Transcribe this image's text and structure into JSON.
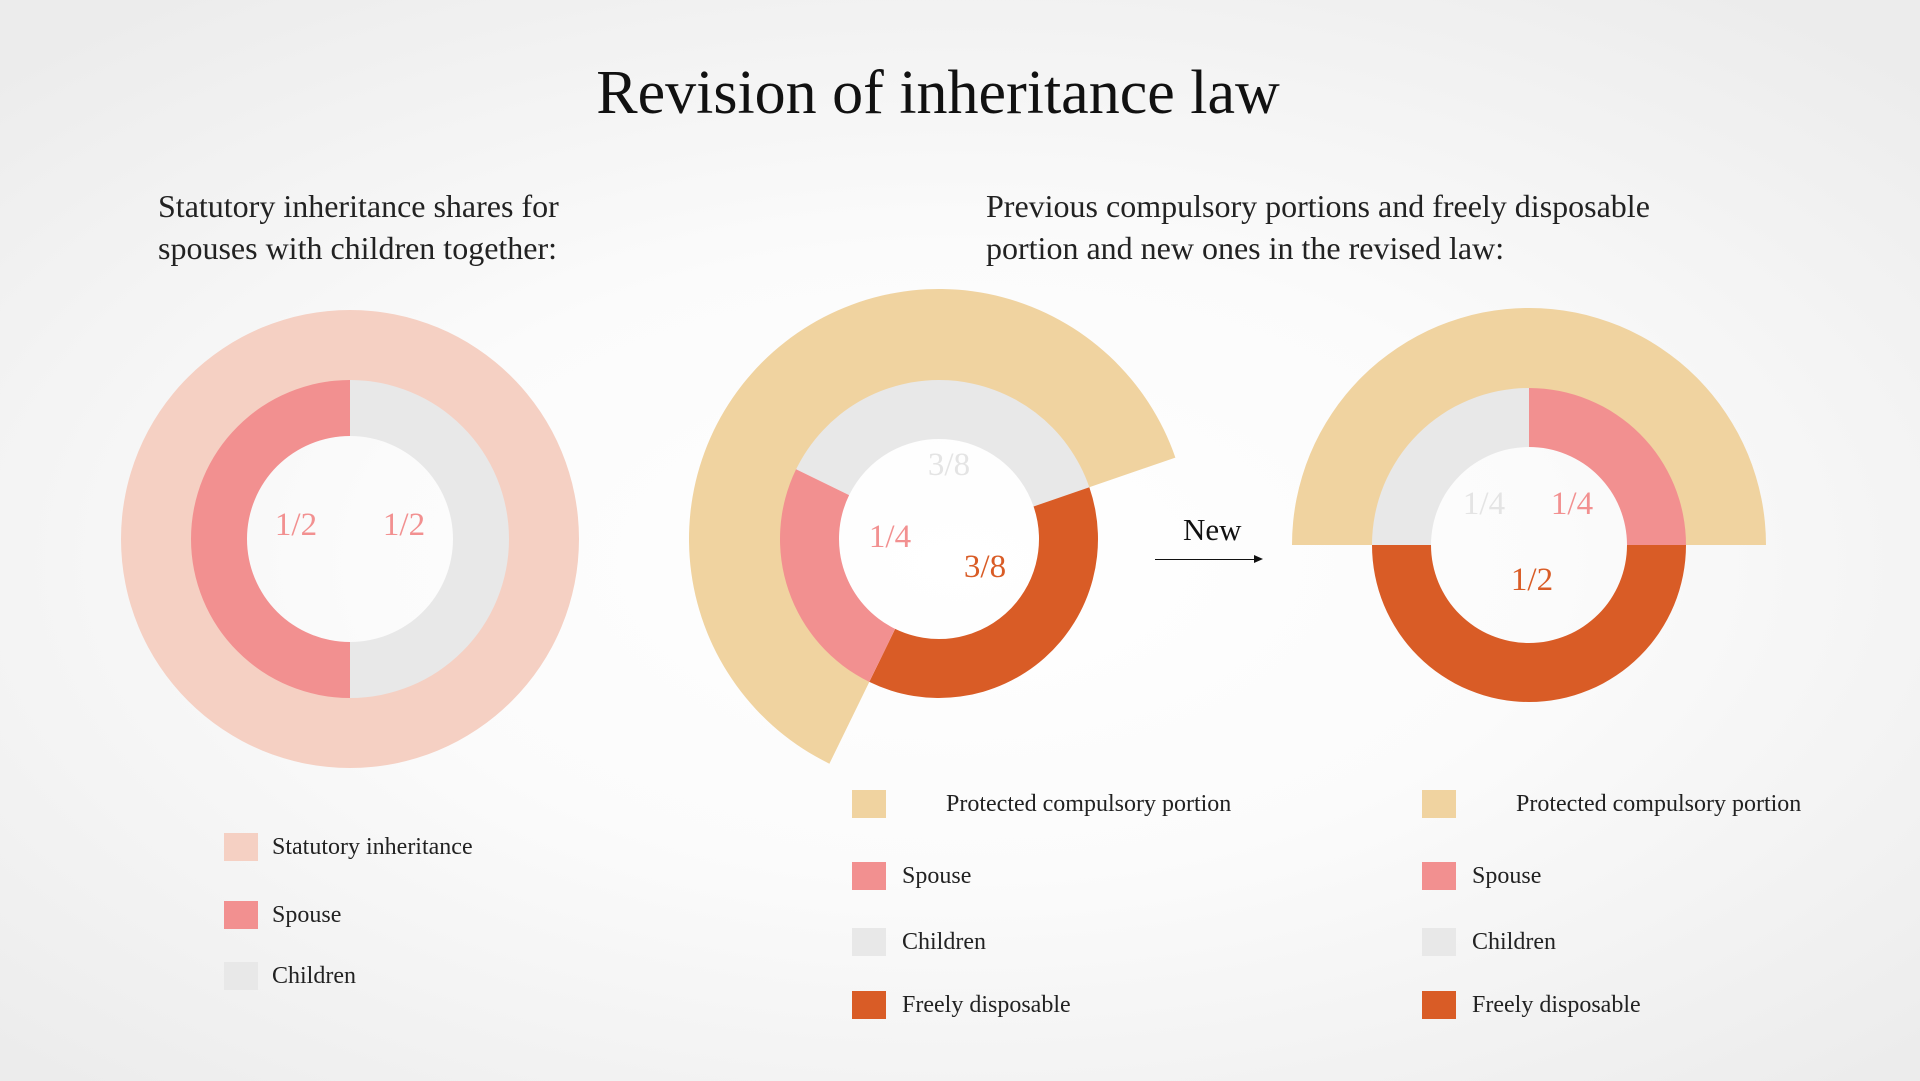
{
  "title": "Revision of inheritance law",
  "left_subtitle": [
    "Statutory inheritance shares for",
    "spouses with children together:"
  ],
  "right_subtitle": [
    "Previous compulsory portions and freely disposable",
    "portion and new ones in the revised law:"
  ],
  "new_label": "New",
  "colors": {
    "statutory": "#f5d0c3",
    "spouse": "#f29090",
    "children": "#e8e8e8",
    "protected": "#f0d3a0",
    "freely": "#d95c26"
  },
  "chart_data": [
    {
      "type": "pie",
      "subtype": "nested-donut",
      "outer_ring": [
        {
          "label": "Statutory inheritance",
          "fraction": 1,
          "color": "#f5d0c3"
        }
      ],
      "inner_ring": [
        {
          "label": "Children",
          "fraction": 0.5,
          "value_label": "1/2",
          "color": "#e8e8e8",
          "text_color": "#f29090"
        },
        {
          "label": "Spouse",
          "fraction": 0.5,
          "value_label": "1/2",
          "color": "#f29090",
          "text_color": "#f29090"
        }
      ],
      "legend": [
        {
          "label": "Statutory inheritance",
          "color": "#f5d0c3"
        },
        {
          "label": "Spouse",
          "color": "#f29090"
        },
        {
          "label": "Children",
          "color": "#e8e8e8"
        }
      ]
    },
    {
      "type": "pie",
      "subtype": "nested-donut",
      "outer_ring": [
        {
          "label": "Protected compulsory portion",
          "fraction": 0.625,
          "color": "#f0d3a0"
        }
      ],
      "inner_ring": [
        {
          "label": "Children",
          "fraction": 0.375,
          "value_label": "3/8",
          "color": "#e8e8e8",
          "text_color": "#e4e4e4"
        },
        {
          "label": "Freely disposable",
          "fraction": 0.375,
          "value_label": "3/8",
          "color": "#d95c26",
          "text_color": "#d95c26"
        },
        {
          "label": "Spouse",
          "fraction": 0.25,
          "value_label": "1/4",
          "color": "#f29090",
          "text_color": "#f29090"
        }
      ],
      "legend": [
        {
          "label": "Protected compulsory portion",
          "color": "#f0d3a0"
        },
        {
          "label": "Spouse",
          "color": "#f29090"
        },
        {
          "label": "Children",
          "color": "#e8e8e8"
        },
        {
          "label": "Freely disposable",
          "color": "#d95c26"
        }
      ]
    },
    {
      "type": "pie",
      "subtype": "nested-donut",
      "outer_ring": [
        {
          "label": "Protected compulsory portion",
          "fraction": 0.5,
          "color": "#f0d3a0"
        }
      ],
      "inner_ring": [
        {
          "label": "Spouse",
          "fraction": 0.25,
          "value_label": "1/4",
          "color": "#f29090",
          "text_color": "#f29090"
        },
        {
          "label": "Freely disposable",
          "fraction": 0.5,
          "value_label": "1/2",
          "color": "#d95c26",
          "text_color": "#d95c26"
        },
        {
          "label": "Children",
          "fraction": 0.25,
          "value_label": "1/4",
          "color": "#e8e8e8",
          "text_color": "#e4e4e4"
        }
      ],
      "legend": [
        {
          "label": "Protected compulsory portion",
          "color": "#f0d3a0"
        },
        {
          "label": "Spouse",
          "color": "#f29090"
        },
        {
          "label": "Children",
          "color": "#e8e8e8"
        },
        {
          "label": "Freely disposable",
          "color": "#d95c26"
        }
      ]
    }
  ]
}
